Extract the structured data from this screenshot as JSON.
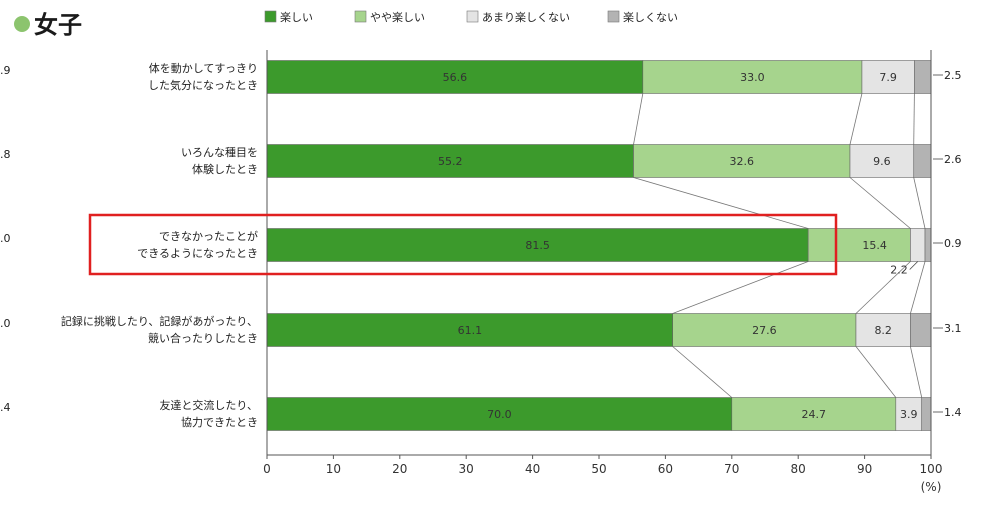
{
  "title": "女子",
  "chart_data": {
    "type": "bar",
    "orientation": "horizontal",
    "stacked": true,
    "title": "女子",
    "x_unit": "(%)",
    "xlim": [
      0,
      100
    ],
    "x_ticks": [
      "0",
      "10",
      "20",
      "30",
      "40",
      "50",
      "60",
      "70",
      "80",
      "90",
      "100"
    ],
    "categories": [
      [
        "体を動かしてすっきり",
        "した気分になったとき"
      ],
      [
        "いろんな種目を",
        "体験したとき"
      ],
      [
        "できなかったことが",
        "できるようになったとき"
      ],
      [
        "記録に挑戦したり、記録があがったり、",
        "競い合ったりしたとき"
      ],
      [
        "友達と交流したり、",
        "協力できたとき"
      ]
    ],
    "left_values": [
      ".9",
      ".8",
      ".0",
      ".0",
      ".4"
    ],
    "series": [
      {
        "name": "楽しい",
        "color": "#3c9a2c",
        "values": [
          56.6,
          55.2,
          81.5,
          61.1,
          70.0
        ],
        "labels": [
          "56.6",
          "55.2",
          "81.5",
          "61.1",
          "70.0"
        ]
      },
      {
        "name": "やや楽しい",
        "color": "#a6d48d",
        "values": [
          33.0,
          32.6,
          15.4,
          27.6,
          24.7
        ],
        "labels": [
          "33.0",
          "32.6",
          "15.4",
          "27.6",
          "24.7"
        ]
      },
      {
        "name": "あまり楽しくない",
        "color": "#e4e4e4",
        "values": [
          7.9,
          9.6,
          2.2,
          8.2,
          3.9
        ],
        "labels": [
          "7.9",
          "9.6",
          "2.2",
          "8.2",
          "3.9"
        ]
      },
      {
        "name": "楽しくない",
        "color": "#b3b3b3",
        "values": [
          2.5,
          2.6,
          0.9,
          3.1,
          1.4
        ],
        "labels": [
          "2.5",
          "2.6",
          "0.9",
          "3.1",
          "1.4"
        ]
      }
    ],
    "highlight_category_index": 2,
    "highlight_color": "#e02020",
    "legend_position": "top"
  }
}
